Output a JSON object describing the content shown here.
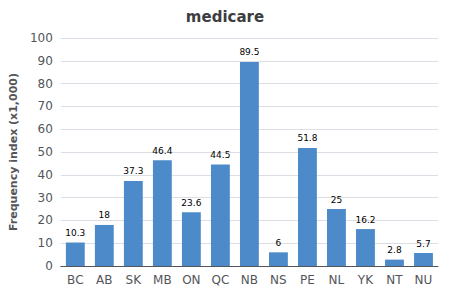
{
  "chart_data": {
    "type": "bar",
    "title": "medicare",
    "ylabel": "Frequency index (x1,000)",
    "categories": [
      "BC",
      "AB",
      "SK",
      "MB",
      "ON",
      "QC",
      "NB",
      "NS",
      "PE",
      "NL",
      "YK",
      "NT",
      "NU"
    ],
    "values": [
      10.3,
      18,
      37.3,
      46.4,
      23.6,
      44.5,
      89.5,
      6,
      51.8,
      25,
      16.2,
      2.8,
      5.7
    ],
    "color": "#4d8ac9",
    "ylim": [
      0,
      100
    ],
    "yticks": [
      0,
      10,
      20,
      30,
      40,
      50,
      60,
      70,
      80,
      90,
      100
    ],
    "grid": true,
    "data_labels": true
  }
}
